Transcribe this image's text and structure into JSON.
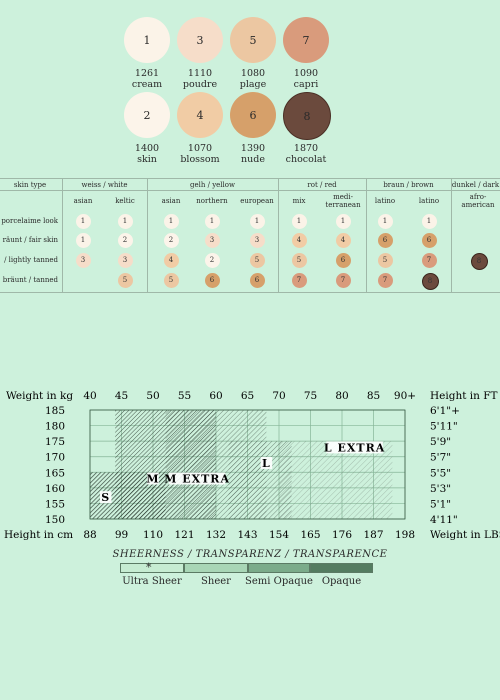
{
  "swatches": [
    {
      "num": "1",
      "code": "1261",
      "name": "cream",
      "color": "#fbf3e8"
    },
    {
      "num": "3",
      "code": "1110",
      "name": "poudre",
      "color": "#f6ddc9"
    },
    {
      "num": "5",
      "code": "1080",
      "name": "plage",
      "color": "#ecc7a2"
    },
    {
      "num": "7",
      "code": "1090",
      "name": "capri",
      "color": "#d99b7c"
    },
    {
      "num": "2",
      "code": "1400",
      "name": "skin",
      "color": "#fcf4ea"
    },
    {
      "num": "4",
      "code": "1070",
      "name": "blossom",
      "color": "#f1cca5"
    },
    {
      "num": "6",
      "code": "1390",
      "name": "nude",
      "color": "#d6a06a"
    },
    {
      "num": "8",
      "code": "1870",
      "name": "chocolat",
      "color": "#6b4a3d"
    }
  ],
  "skin_table": {
    "type_label": "skin type",
    "groups": [
      "weiss / white",
      "gelh / yellow",
      "rot / red",
      "braun / brown",
      "dunkel / dark"
    ],
    "subheads": [
      "asian",
      "keltic",
      "asian",
      "northern",
      "european",
      "mix",
      "medi-\nterranean",
      "latino",
      "latino",
      "afro-\namerican"
    ],
    "row_labels": [
      "porcelaime look",
      "räunt / fair skin",
      "/ lightly tanned",
      "bräunt / tanned"
    ],
    "rows": [
      [
        "1",
        "1",
        "1",
        "1",
        "1",
        "1",
        "1",
        "1",
        "1",
        ""
      ],
      [
        "1",
        "2",
        "2",
        "3",
        "3",
        "4",
        "4",
        "6",
        "6",
        ""
      ],
      [
        "3",
        "3",
        "4",
        "2",
        "5",
        "5",
        "6",
        "5",
        "7",
        "8"
      ],
      [
        "",
        "5",
        "5",
        "6",
        "6",
        "7",
        "7",
        "7",
        "8",
        ""
      ]
    ]
  },
  "chart_data": {
    "type": "heatmap",
    "top_left_label": "Weight in kg",
    "top_right_label": "Height in FT",
    "bottom_left_label": "Height in cm",
    "bottom_right_label": "Weight in LBS",
    "kg_ticks": [
      "40",
      "45",
      "50",
      "55",
      "60",
      "65",
      "70",
      "75",
      "80",
      "85",
      "90+"
    ],
    "lbs_ticks": [
      "88",
      "99",
      "110",
      "121",
      "132",
      "143",
      "154",
      "165",
      "176",
      "187",
      "198"
    ],
    "cm_ticks": [
      "185",
      "180",
      "175",
      "170",
      "165",
      "160",
      "155",
      "150"
    ],
    "ft_ticks": [
      "6'1\"+",
      "5'11\"",
      "5'9\"",
      "5'7\"",
      "5'5\"",
      "5'3\"",
      "5'1\"",
      "4'11\""
    ],
    "sizes": [
      {
        "label": "S",
        "kg": [
          40,
          52
        ],
        "cm": [
          150,
          165
        ]
      },
      {
        "label": "M",
        "kg": [
          44,
          60
        ],
        "cm": [
          150,
          185
        ]
      },
      {
        "label": "M EXTRA",
        "kg": [
          52,
          68
        ],
        "cm": [
          150,
          185
        ]
      },
      {
        "label": "L",
        "kg": [
          62,
          72
        ],
        "cm": [
          150,
          175
        ]
      },
      {
        "label": "L EXTRA",
        "kg": [
          70,
          88
        ],
        "cm": [
          150,
          175
        ]
      }
    ],
    "label_positions": [
      {
        "text": "S",
        "kg": 42.5,
        "cm": 157
      },
      {
        "text": "M",
        "kg": 50,
        "cm": 163
      },
      {
        "text": "M EXTRA",
        "kg": 57,
        "cm": 163
      },
      {
        "text": "L",
        "kg": 68,
        "cm": 168
      },
      {
        "text": "L EXTRA",
        "kg": 82,
        "cm": 173
      }
    ]
  },
  "sheerness": {
    "title": "SHEERNESS / TRANSPARENZ / TRANSPARENCE",
    "marker": "*",
    "levels": [
      {
        "label": "Ultra Sheer",
        "color": "#c6ecd2"
      },
      {
        "label": "Sheer",
        "color": "#a8d6b6"
      },
      {
        "label": "Semi Opaque",
        "color": "#7bab8a"
      },
      {
        "label": "Opaque",
        "color": "#547c60"
      }
    ]
  }
}
